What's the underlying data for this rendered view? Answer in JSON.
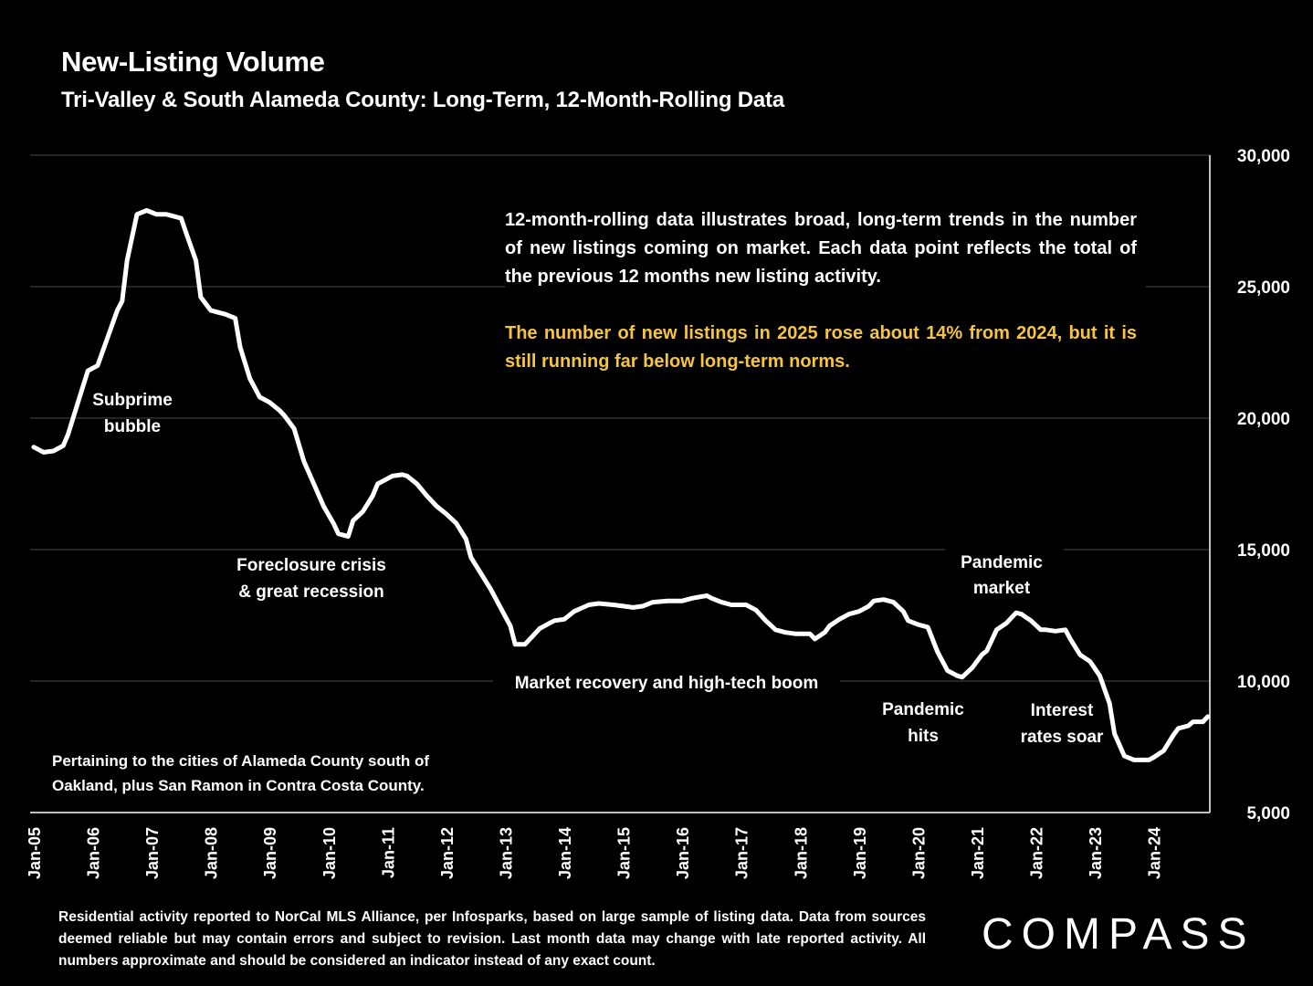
{
  "header": {
    "title": "New-Listing Volume",
    "subtitle": "Tri-Valley & South Alameda County: Long-Term, 12-Month-Rolling Data"
  },
  "note": {
    "text": "12-month-rolling data illustrates broad, long-term trends in the number of new listings coming on market. Each data point reflects the total of the previous 12 months new listing activity.",
    "highlight": "The number of new listings in 2025 rose about 14% from 2024, but it is still running far below long-term norms.",
    "highlight_color": "#f5c542"
  },
  "cities_note": {
    "line1": "Pertaining to the cities of Alameda County south of",
    "line2": "Oakland, plus San Ramon in Contra Costa County."
  },
  "footer": "Residential activity reported to NorCal MLS Alliance, per Infosparks, based on large sample of listing data. Data from sources deemed reliable but may contain errors and subject to revision. Last month data may change with late reported activity. All numbers approximate and should be considered an indicator instead of any exact count.",
  "logo": "COMPASS",
  "chart_data": {
    "type": "line",
    "title": "New-Listing Volume",
    "subtitle": "Tri-Valley & South Alameda County: Long-Term, 12-Month-Rolling Data",
    "ylim": [
      5000,
      30000
    ],
    "yaxis_position": "right",
    "y_ticks": [
      "5,000",
      "10,000",
      "15,000",
      "20,000",
      "25,000",
      "30,000"
    ],
    "x_ticks": [
      "Jan-05",
      "Jan-06",
      "Jan-07",
      "Jan-08",
      "Jan-09",
      "Jan-10",
      "Jan-11",
      "Jan-12",
      "Jan-13",
      "Jan-14",
      "Jan-15",
      "Jan-16",
      "Jan-17",
      "Jan-18",
      "Jan-19",
      "Jan-20",
      "Jan-21",
      "Jan-22",
      "Jan-23",
      "Jan-24"
    ],
    "grid": true,
    "line_color": "#ffffff",
    "annotations": [
      {
        "lines": [
          "Subprime",
          "bubble"
        ]
      },
      {
        "lines": [
          "Foreclosure crisis",
          "& great recession"
        ]
      },
      {
        "lines": [
          "Market recovery and high-tech boom"
        ]
      },
      {
        "lines": [
          "Pandemic",
          "hits"
        ]
      },
      {
        "lines": [
          "Pandemic",
          "market"
        ]
      },
      {
        "lines": [
          "Interest",
          "rates soar"
        ]
      }
    ],
    "series": [
      {
        "points": [
          [
            "2005-01",
            18900
          ],
          [
            "2005-03",
            18700
          ],
          [
            "2005-05",
            18750
          ],
          [
            "2005-07",
            18950
          ],
          [
            "2005-08",
            19400
          ],
          [
            "2005-10",
            20600
          ],
          [
            "2005-12",
            21800
          ],
          [
            "2006-02",
            22000
          ],
          [
            "2006-04",
            23050
          ],
          [
            "2006-06",
            24100
          ],
          [
            "2006-07",
            24450
          ],
          [
            "2006-08",
            26000
          ],
          [
            "2006-10",
            27750
          ],
          [
            "2006-12",
            27900
          ],
          [
            "2007-02",
            27750
          ],
          [
            "2007-04",
            27750
          ],
          [
            "2007-05",
            27700
          ],
          [
            "2007-07",
            27600
          ],
          [
            "2007-08",
            27050
          ],
          [
            "2007-10",
            26000
          ],
          [
            "2007-11",
            24600
          ],
          [
            "2008-01",
            24100
          ],
          [
            "2008-03",
            24000
          ],
          [
            "2008-04",
            23950
          ],
          [
            "2008-06",
            23800
          ],
          [
            "2008-07",
            22700
          ],
          [
            "2008-09",
            21500
          ],
          [
            "2008-11",
            20800
          ],
          [
            "2009-01",
            20600
          ],
          [
            "2009-03",
            20300
          ],
          [
            "2009-04",
            20100
          ],
          [
            "2009-06",
            19600
          ],
          [
            "2009-08",
            18350
          ],
          [
            "2009-10",
            17500
          ],
          [
            "2009-12",
            16650
          ],
          [
            "2010-02",
            16000
          ],
          [
            "2010-03",
            15600
          ],
          [
            "2010-05",
            15500
          ],
          [
            "2010-06",
            16100
          ],
          [
            "2010-08",
            16450
          ],
          [
            "2010-10",
            17050
          ],
          [
            "2010-11",
            17500
          ],
          [
            "2011-02",
            17800
          ],
          [
            "2011-04",
            17850
          ],
          [
            "2011-05",
            17800
          ],
          [
            "2011-07",
            17500
          ],
          [
            "2011-09",
            17050
          ],
          [
            "2011-11",
            16650
          ],
          [
            "2012-01",
            16350
          ],
          [
            "2012-03",
            16000
          ],
          [
            "2012-05",
            15400
          ],
          [
            "2012-06",
            14700
          ],
          [
            "2012-08",
            14100
          ],
          [
            "2012-10",
            13500
          ],
          [
            "2012-12",
            12800
          ],
          [
            "2013-02",
            12100
          ],
          [
            "2013-03",
            11400
          ],
          [
            "2013-05",
            11400
          ],
          [
            "2013-06",
            11600
          ],
          [
            "2013-08",
            12000
          ],
          [
            "2013-10",
            12200
          ],
          [
            "2013-11",
            12300
          ],
          [
            "2014-01",
            12350
          ],
          [
            "2014-03",
            12650
          ],
          [
            "2014-06",
            12900
          ],
          [
            "2014-08",
            12950
          ],
          [
            "2014-11",
            12900
          ],
          [
            "2015-01",
            12850
          ],
          [
            "2015-03",
            12800
          ],
          [
            "2015-05",
            12850
          ],
          [
            "2015-07",
            13000
          ],
          [
            "2015-10",
            13050
          ],
          [
            "2016-01",
            13050
          ],
          [
            "2016-03",
            13150
          ],
          [
            "2016-06",
            13250
          ],
          [
            "2016-07",
            13150
          ],
          [
            "2016-09",
            13000
          ],
          [
            "2016-11",
            12900
          ],
          [
            "2017-02",
            12900
          ],
          [
            "2017-04",
            12700
          ],
          [
            "2017-06",
            12300
          ],
          [
            "2017-08",
            11950
          ],
          [
            "2017-10",
            11850
          ],
          [
            "2017-12",
            11800
          ],
          [
            "2018-03",
            11800
          ],
          [
            "2018-04",
            11600
          ],
          [
            "2018-06",
            11850
          ],
          [
            "2018-07",
            12100
          ],
          [
            "2018-09",
            12350
          ],
          [
            "2018-11",
            12550
          ],
          [
            "2019-01",
            12650
          ],
          [
            "2019-03",
            12850
          ],
          [
            "2019-04",
            13050
          ],
          [
            "2019-06",
            13100
          ],
          [
            "2019-08",
            13000
          ],
          [
            "2019-10",
            12650
          ],
          [
            "2019-11",
            12300
          ],
          [
            "2020-01",
            12150
          ],
          [
            "2020-03",
            12050
          ],
          [
            "2020-05",
            11100
          ],
          [
            "2020-07",
            10400
          ],
          [
            "2020-09",
            10200
          ],
          [
            "2020-10",
            10150
          ],
          [
            "2020-12",
            10500
          ],
          [
            "2021-02",
            11000
          ],
          [
            "2021-03",
            11150
          ],
          [
            "2021-05",
            11950
          ],
          [
            "2021-07",
            12200
          ],
          [
            "2021-09",
            12600
          ],
          [
            "2021-10",
            12550
          ],
          [
            "2021-12",
            12300
          ],
          [
            "2022-02",
            11950
          ],
          [
            "2022-03",
            11950
          ],
          [
            "2022-05",
            11900
          ],
          [
            "2022-07",
            11950
          ],
          [
            "2022-08",
            11600
          ],
          [
            "2022-10",
            11000
          ],
          [
            "2022-12",
            10750
          ],
          [
            "2023-02",
            10200
          ],
          [
            "2023-04",
            9150
          ],
          [
            "2023-05",
            8000
          ],
          [
            "2023-07",
            7150
          ],
          [
            "2023-09",
            7000
          ],
          [
            "2023-12",
            7000
          ],
          [
            "2024-01",
            7100
          ],
          [
            "2024-03",
            7350
          ],
          [
            "2024-05",
            7950
          ],
          [
            "2024-06",
            8200
          ],
          [
            "2024-08",
            8300
          ],
          [
            "2024-09",
            8450
          ],
          [
            "2024-11",
            8450
          ],
          [
            "2024-12",
            8650
          ]
        ]
      }
    ]
  }
}
